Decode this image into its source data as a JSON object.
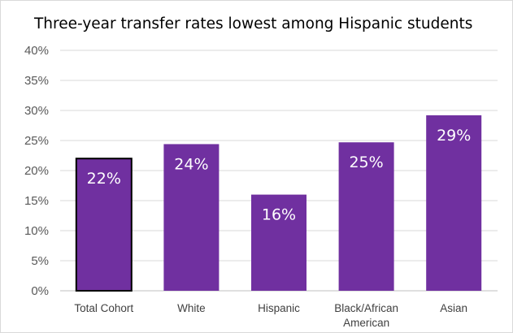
{
  "chart_data": {
    "type": "bar",
    "title": "Three-year transfer rates lowest among Hispanic students",
    "categories": [
      [
        "Total Cohort"
      ],
      [
        "White"
      ],
      [
        "Hispanic"
      ],
      [
        "Black/African",
        "American"
      ],
      [
        "Asian"
      ]
    ],
    "values": [
      22,
      24.4,
      16,
      24.7,
      29.2
    ],
    "data_labels": [
      "22%",
      "24%",
      "16%",
      "25%",
      "29%"
    ],
    "y_ticks": [
      "0%",
      "5%",
      "10%",
      "15%",
      "20%",
      "25%",
      "30%",
      "35%",
      "40%"
    ],
    "ylim": [
      0,
      40
    ],
    "xlabel": "",
    "ylabel": "",
    "grid": true,
    "bar_color": "#7030a0",
    "highlight_outline_color": "#000000",
    "highlighted_category_index": 0
  }
}
